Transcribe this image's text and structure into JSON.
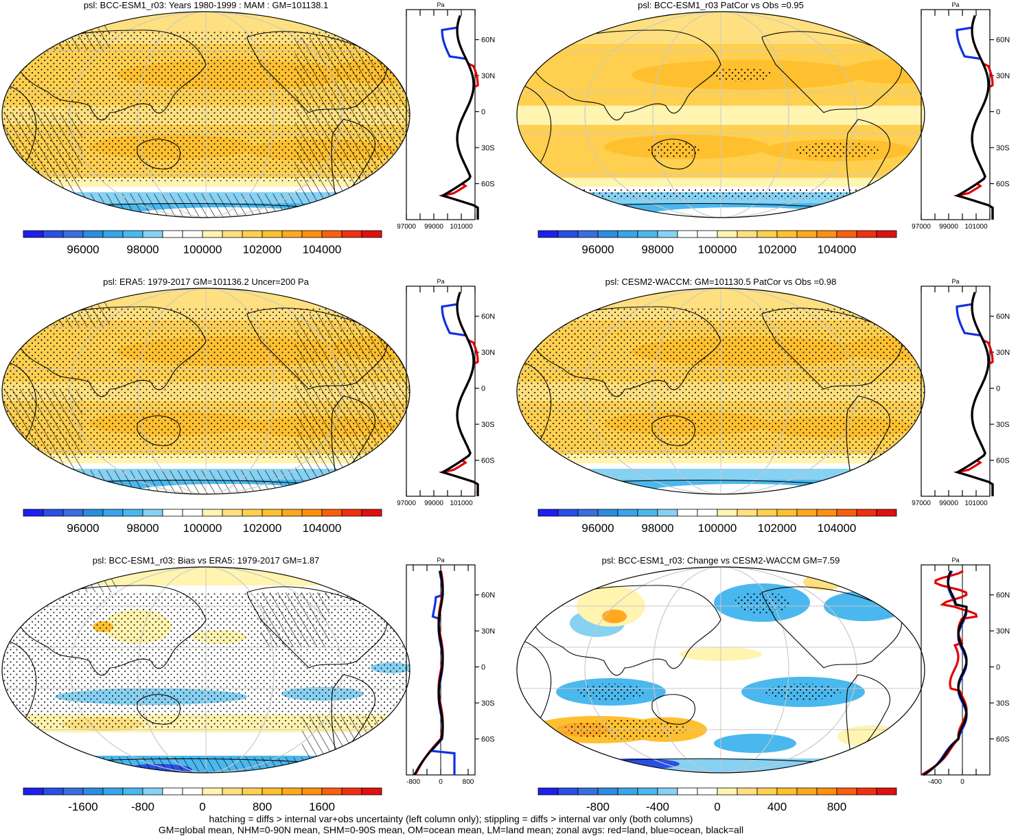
{
  "panels": [
    {
      "title": "psl: BCC-ESM1_r03: Years 1980-1999 : MAM : GM=101138.1",
      "kind": "abs",
      "hatch": true
    },
    {
      "title": "psl: BCC-ESM1_r03 PatCor vs Obs =0.95",
      "kind": "abs",
      "hatch": false
    },
    {
      "title": "psl: ERA5: 1979-2017 GM=101136.2 Uncer=200 Pa",
      "kind": "abs",
      "hatch": true
    },
    {
      "title": "psl: CESM2-WACCM: GM=101130.5 PatCor vs Obs =0.98",
      "kind": "abs",
      "hatch": false
    },
    {
      "title": "psl: BCC-ESM1_r03: Bias vs ERA5: 1979-2017 GM=1.87",
      "kind": "bias",
      "hatch": true
    },
    {
      "title": "psl: BCC-ESM1_r03: Change vs CESM2-WACCM GM=7.59",
      "kind": "change",
      "hatch": false
    }
  ],
  "colorbars": {
    "abs": [
      "96000",
      "98000",
      "100000",
      "102000",
      "104000"
    ],
    "bias": [
      "-1600",
      "-800",
      "0",
      "800",
      "1600"
    ],
    "change": [
      "-800",
      "-400",
      "0",
      "400",
      "800"
    ]
  },
  "palette": [
    "#1e1ef0",
    "#2a4fe6",
    "#3a6fe0",
    "#2c8de0",
    "#38a5e8",
    "#4ab8ee",
    "#87d1f2",
    "#ffffff",
    "#ffffff",
    "#fff4b0",
    "#ffe080",
    "#ffd050",
    "#ffc030",
    "#ffa820",
    "#ff9010",
    "#f86010",
    "#f03010",
    "#e01010"
  ],
  "zonal": {
    "unit": "Pa",
    "lat_labels": [
      "60N",
      "30N",
      "0",
      "30S",
      "60S"
    ],
    "abs_ticks": [
      "97000",
      "99000",
      "101000"
    ],
    "bias_ticks": [
      "-800",
      "0",
      "800"
    ],
    "change_ticks": [
      "-400",
      "0"
    ],
    "series_colors": {
      "land": "#e00000",
      "ocean": "#1030e0",
      "all": "#000000"
    }
  },
  "footer": [
    "hatching = diffs > internal var+obs uncertainty (left column only); stippling = diffs > internal var only (both columns)",
    "GM=global mean, NHM=0-90N mean, SHM=0-90S mean, OM=ocean mean, LM=land mean; zonal avgs: red=land, blue=ocean, black=all"
  ]
}
